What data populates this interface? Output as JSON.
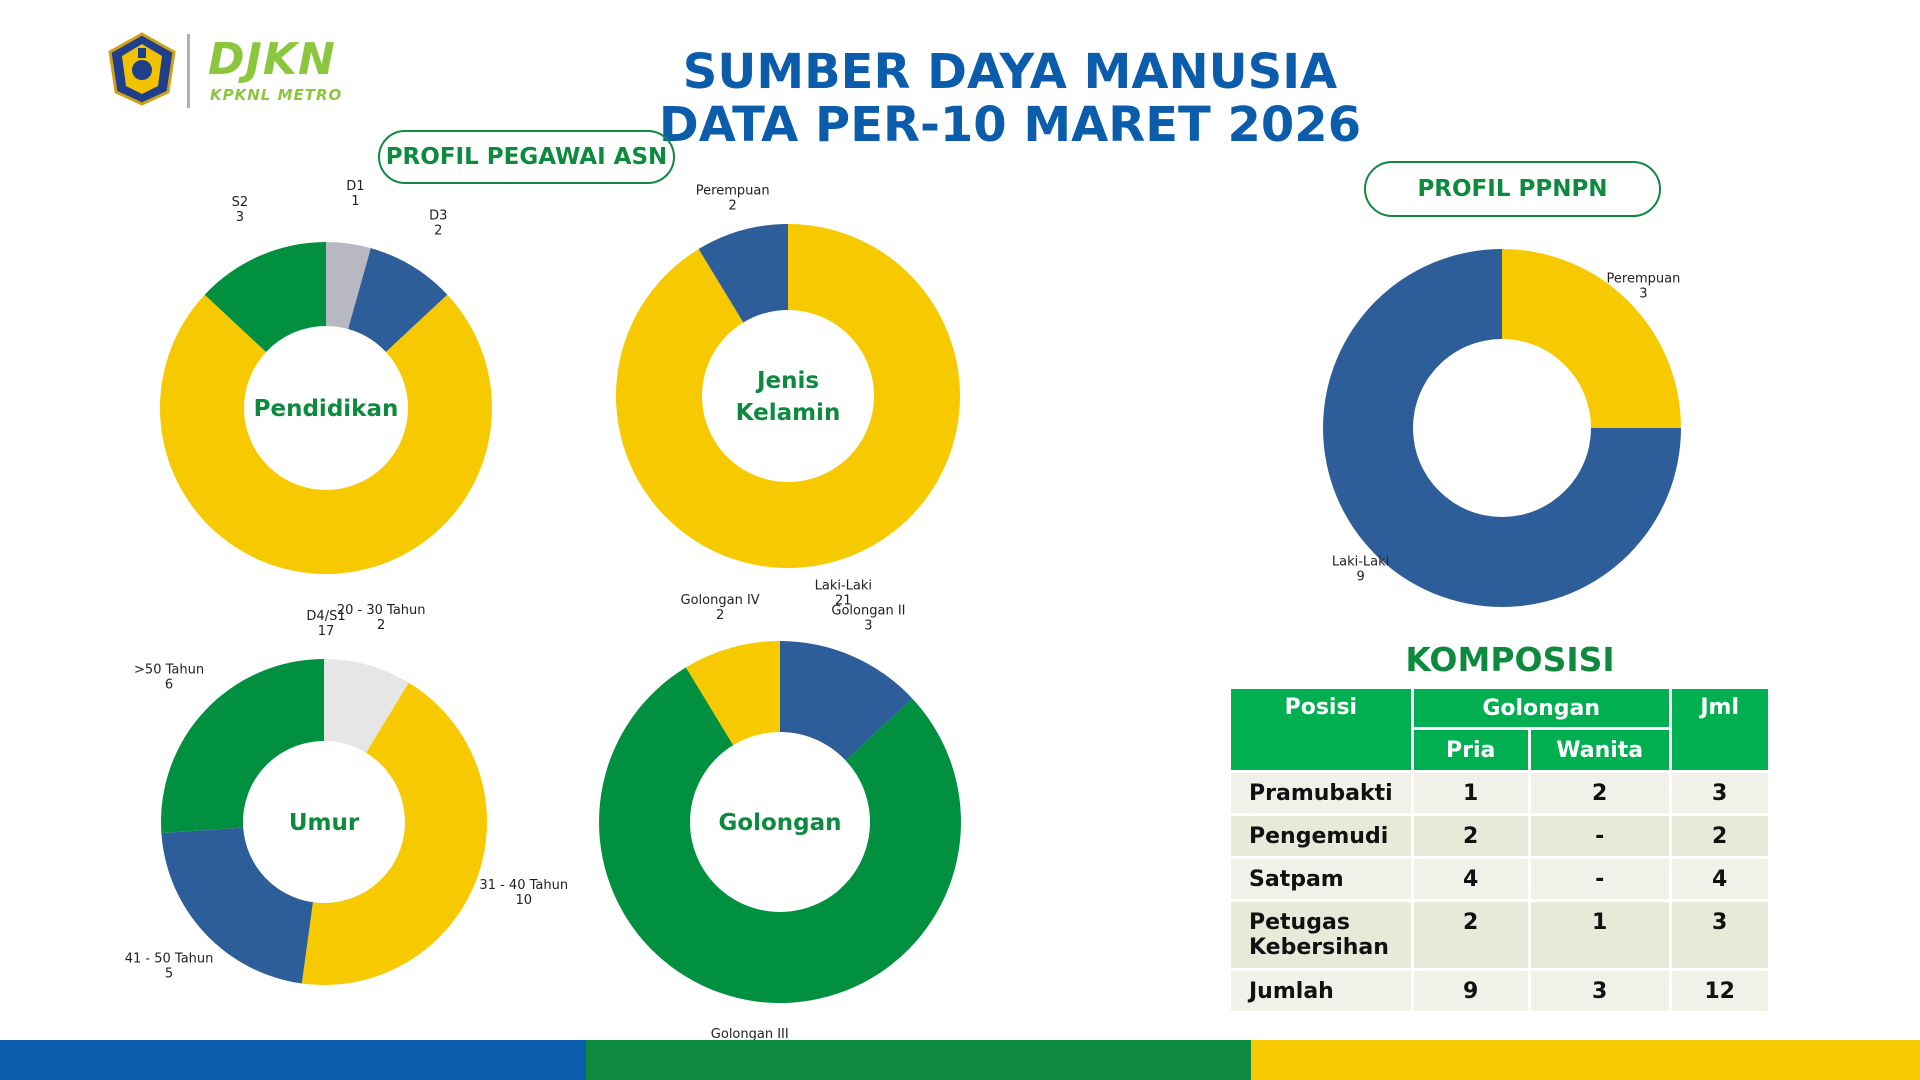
{
  "header": {
    "brand": "DJKN",
    "brand_sub": "KPKNL METRO",
    "title_line1": "SUMBER DAYA MANUSIA",
    "title_line2": "DATA PER-10 MARET 2026"
  },
  "sections": {
    "asn_label": "PROFIL PEGAWAI ASN",
    "ppnpn_label": "PROFIL PPNPN",
    "komposisi_label": "KOMPOSISI"
  },
  "colors": {
    "yellow": "#f7c900",
    "blue": "#2e5e99",
    "green": "#00903f",
    "grey": "#b8b8c2",
    "light_grey": "#e6e6e6",
    "title_blue": "#0b5cab",
    "label_green": "#0d8a3e"
  },
  "chart_data": [
    {
      "type": "pie",
      "donut": true,
      "title": "Pendidikan",
      "categories": [
        "D1",
        "D3",
        "D4/S1",
        "S2"
      ],
      "values": [
        1,
        2,
        17,
        3
      ],
      "colors": [
        "#b8b8c2",
        "#2e5e99",
        "#f7c900",
        "#00903f"
      ]
    },
    {
      "type": "pie",
      "donut": true,
      "title": "Jenis Kelamin",
      "categories": [
        "Laki-Laki",
        "Perempuan"
      ],
      "values": [
        21,
        2
      ],
      "colors": [
        "#f7c900",
        "#2e5e99"
      ]
    },
    {
      "type": "pie",
      "donut": true,
      "title": "Umur",
      "categories": [
        "20 - 30 Tahun",
        "31 - 40 Tahun",
        "41 - 50 Tahun",
        ">50 Tahun"
      ],
      "values": [
        2,
        10,
        5,
        6
      ],
      "colors": [
        "#e6e6e6",
        "#f7c900",
        "#2e5e99",
        "#00903f"
      ]
    },
    {
      "type": "pie",
      "donut": true,
      "title": "Golongan",
      "categories": [
        "Golongan II",
        "Golongan III",
        "Golongan IV"
      ],
      "values": [
        3,
        18,
        2
      ],
      "colors": [
        "#2e5e99",
        "#00903f",
        "#f7c900"
      ]
    },
    {
      "type": "pie",
      "donut": true,
      "title": "",
      "categories": [
        "Perempuan",
        "Laki-Laki"
      ],
      "values": [
        3,
        9
      ],
      "colors": [
        "#f7c900",
        "#2e5e99"
      ]
    }
  ],
  "komposisi": {
    "headers": {
      "posisi": "Posisi",
      "golongan": "Golongan",
      "pria": "Pria",
      "wanita": "Wanita",
      "jml": "Jml"
    },
    "rows": [
      {
        "posisi": "Pramubakti",
        "pria": "1",
        "wanita": "2",
        "jml": "3"
      },
      {
        "posisi": "Pengemudi",
        "pria": "2",
        "wanita": "-",
        "jml": "2"
      },
      {
        "posisi": "Satpam",
        "pria": "4",
        "wanita": "-",
        "jml": "4"
      },
      {
        "posisi": "Petugas Kebersihan",
        "pria": "2",
        "wanita": "1",
        "jml": "3"
      },
      {
        "posisi": "Jumlah",
        "pria": "9",
        "wanita": "3",
        "jml": "12"
      }
    ]
  }
}
